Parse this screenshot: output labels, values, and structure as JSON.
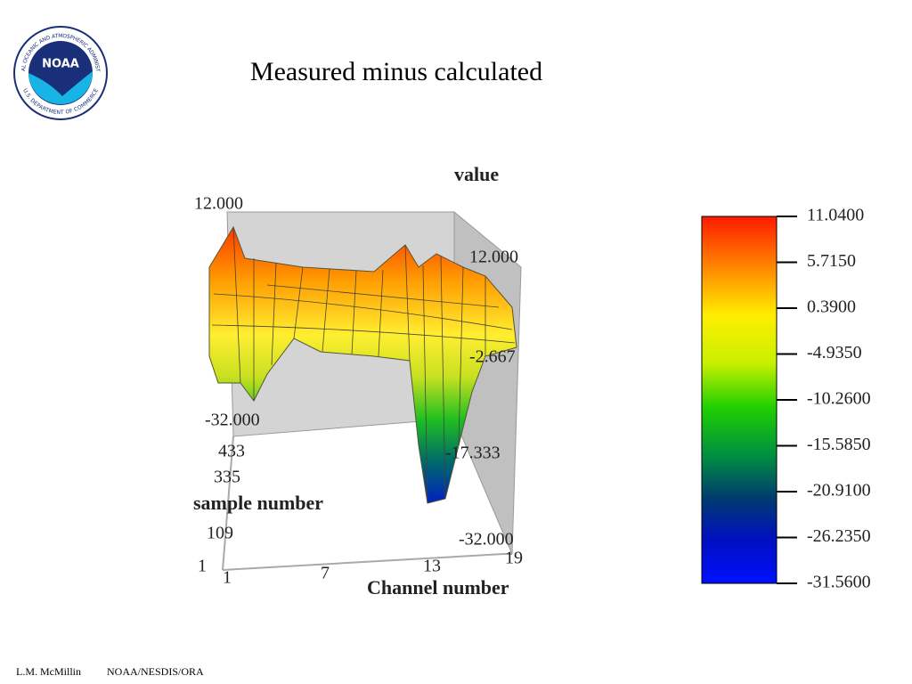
{
  "logo": {
    "emblem": "NOAA",
    "ring_top": "NATIONAL OCEANIC AND ATMOSPHERIC ADMINISTRATION",
    "ring_bottom": "U.S. DEPARTMENT OF COMMERCE"
  },
  "title": "Measured minus calculated",
  "plot": {
    "z_axis_title": "value",
    "x_axis_title": "Channel number",
    "y_axis_title": "sample number",
    "z_ticks_left": [
      "12.000",
      "-32.000"
    ],
    "z_ticks_right": [
      "12.000",
      "-2.667",
      "-17.333",
      "-32.000"
    ],
    "x_ticks": [
      "1",
      "7",
      "13",
      "19"
    ],
    "y_ticks": [
      "1",
      "109",
      "335",
      "433"
    ]
  },
  "colorbar": {
    "ticks": [
      "11.0400",
      "5.7150",
      "0.3900",
      "-4.9350",
      "-10.2600",
      "-15.5850",
      "-20.9100",
      "-26.2350",
      "-31.5600"
    ]
  },
  "footer": {
    "author": "L.M. McMillin",
    "org": "NOAA/NESDIS/ORA"
  }
}
